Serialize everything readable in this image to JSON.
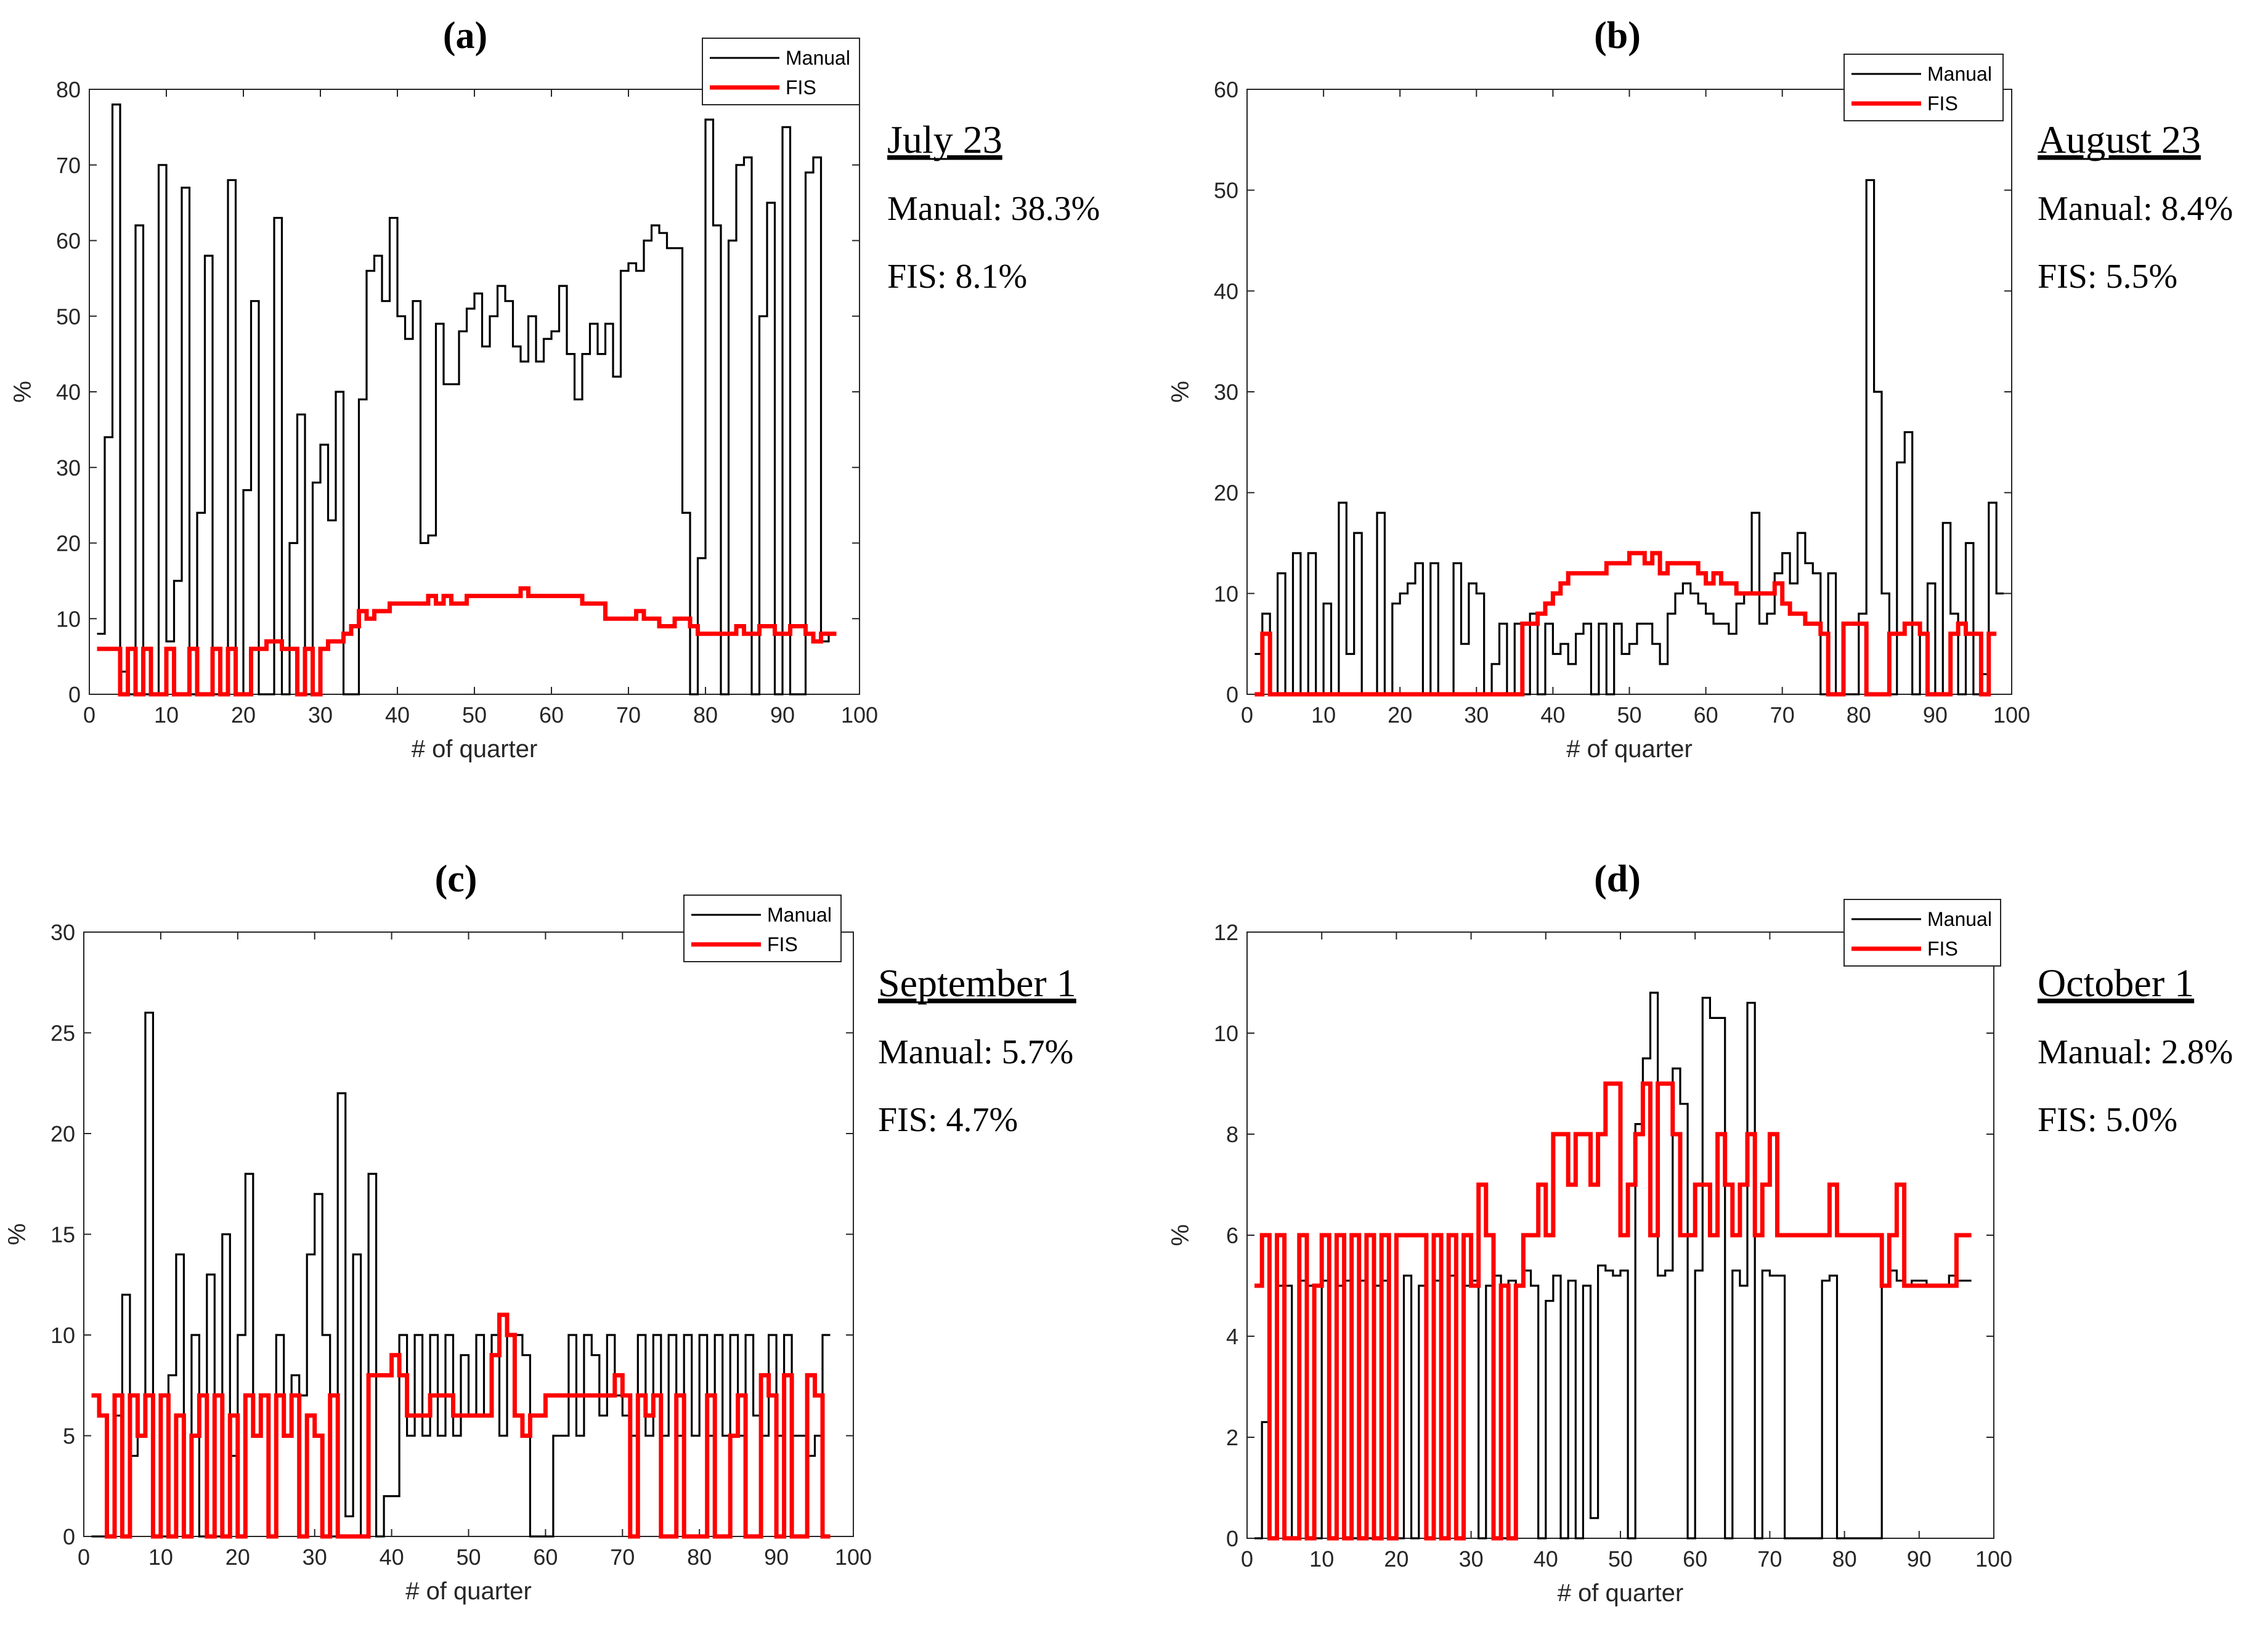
{
  "chart_data": [
    {
      "type": "line",
      "panel": "(a)",
      "xlabel": "# of quarter",
      "ylabel": "%",
      "xlim": [
        0,
        100
      ],
      "ylim": [
        0,
        80
      ],
      "xticks": [
        0,
        10,
        20,
        30,
        40,
        50,
        60,
        70,
        80,
        90,
        100
      ],
      "yticks": [
        0,
        10,
        20,
        30,
        40,
        50,
        60,
        70,
        80
      ],
      "legend": [
        "Manual",
        "FIS"
      ],
      "legend_position": "top-right",
      "annotation": {
        "date": "July 23",
        "manual": "Manual: 38.3%",
        "fis": "FIS: 8.1%"
      },
      "series": [
        {
          "name": "Manual",
          "color": "#000000",
          "step": "post",
          "x_start": 1,
          "values": [
            8,
            34,
            78,
            3,
            0,
            62,
            0,
            0,
            70,
            7,
            15,
            67,
            0,
            24,
            58,
            0,
            0,
            68,
            0,
            27,
            52,
            0,
            0,
            63,
            0,
            20,
            37,
            0,
            28,
            33,
            23,
            40,
            0,
            0,
            39,
            56,
            58,
            52,
            63,
            50,
            47,
            52,
            20,
            21,
            49,
            41,
            41,
            48,
            51,
            53,
            46,
            50,
            54,
            52,
            46,
            44,
            50,
            44,
            47,
            48,
            54,
            45,
            39,
            45,
            49,
            45,
            49,
            42,
            56,
            57,
            56,
            60,
            62,
            61,
            59,
            59,
            24,
            0,
            18,
            76,
            62,
            0,
            60,
            70,
            71,
            0,
            50,
            65,
            0,
            75,
            0,
            0,
            69,
            71,
            7,
            8
          ]
        },
        {
          "name": "FIS",
          "color": "#ff0000",
          "step": "post",
          "x_start": 1,
          "values": [
            6,
            6,
            6,
            0,
            6,
            0,
            6,
            0,
            0,
            6,
            0,
            0,
            6,
            0,
            0,
            6,
            0,
            6,
            0,
            0,
            6,
            6,
            7,
            7,
            6,
            6,
            0,
            6,
            0,
            6,
            7,
            7,
            8,
            9,
            11,
            10,
            11,
            11,
            12,
            12,
            12,
            12,
            12,
            13,
            12,
            13,
            12,
            12,
            13,
            13,
            13,
            13,
            13,
            13,
            13,
            14,
            13,
            13,
            13,
            13,
            13,
            13,
            13,
            12,
            12,
            12,
            10,
            10,
            10,
            10,
            11,
            10,
            10,
            9,
            9,
            10,
            10,
            9,
            8,
            8,
            8,
            8,
            8,
            9,
            8,
            8,
            9,
            9,
            8,
            8,
            9,
            9,
            8,
            7,
            8,
            8
          ]
        }
      ]
    },
    {
      "type": "line",
      "panel": "(b)",
      "xlabel": "# of quarter",
      "ylabel": "%",
      "xlim": [
        0,
        100
      ],
      "ylim": [
        0,
        60
      ],
      "xticks": [
        0,
        10,
        20,
        30,
        40,
        50,
        60,
        70,
        80,
        90,
        100
      ],
      "yticks": [
        0,
        10,
        20,
        30,
        40,
        50,
        60
      ],
      "legend": [
        "Manual",
        "FIS"
      ],
      "legend_position": "top-right",
      "annotation": {
        "date": "August 23",
        "manual": "Manual: 8.4%",
        "fis": "FIS: 5.5%"
      },
      "series": [
        {
          "name": "Manual",
          "color": "#000000",
          "step": "post",
          "x_start": 1,
          "values": [
            4,
            8,
            0,
            12,
            0,
            14,
            0,
            14,
            0,
            9,
            0,
            19,
            4,
            16,
            0,
            0,
            18,
            0,
            9,
            10,
            11,
            13,
            0,
            13,
            0,
            0,
            13,
            5,
            11,
            10,
            0,
            3,
            7,
            0,
            7,
            0,
            8,
            0,
            7,
            4,
            5,
            3,
            6,
            7,
            0,
            7,
            0,
            7,
            4,
            5,
            7,
            7,
            5,
            3,
            8,
            10,
            11,
            10,
            9,
            8,
            7,
            7,
            6,
            9,
            10,
            18,
            7,
            8,
            12,
            14,
            11,
            16,
            13,
            12,
            0,
            12,
            0,
            0,
            0,
            8,
            51,
            30,
            10,
            0,
            23,
            26,
            0,
            6,
            11,
            0,
            17,
            8,
            0,
            15,
            0,
            2,
            19,
            10
          ]
        },
        {
          "name": "FIS",
          "color": "#ff0000",
          "step": "post",
          "x_start": 1,
          "values": [
            0,
            6,
            0,
            0,
            0,
            0,
            0,
            0,
            0,
            0,
            0,
            0,
            0,
            0,
            0,
            0,
            0,
            0,
            0,
            0,
            0,
            0,
            0,
            0,
            0,
            0,
            0,
            0,
            0,
            0,
            0,
            0,
            0,
            0,
            0,
            7,
            7,
            8,
            9,
            10,
            11,
            12,
            12,
            12,
            12,
            12,
            13,
            13,
            13,
            14,
            14,
            13,
            14,
            12,
            13,
            13,
            13,
            13,
            12,
            11,
            12,
            11,
            11,
            10,
            10,
            10,
            10,
            10,
            11,
            9,
            8,
            8,
            7,
            7,
            6,
            0,
            0,
            7,
            7,
            7,
            0,
            0,
            0,
            6,
            6,
            7,
            7,
            6,
            0,
            0,
            0,
            6,
            7,
            6,
            6,
            0,
            6
          ]
        }
      ]
    },
    {
      "type": "line",
      "panel": "(c)",
      "xlabel": "# of quarter",
      "ylabel": "%",
      "xlim": [
        0,
        100
      ],
      "ylim": [
        0,
        30
      ],
      "xticks": [
        0,
        10,
        20,
        30,
        40,
        50,
        60,
        70,
        80,
        90,
        100
      ],
      "yticks": [
        0,
        5,
        10,
        15,
        20,
        25,
        30
      ],
      "legend": [
        "Manual",
        "FIS"
      ],
      "legend_position": "top-right",
      "annotation": {
        "date": "September 1",
        "manual": "Manual: 5.7%",
        "fis": "FIS: 4.7%"
      },
      "series": [
        {
          "name": "Manual",
          "color": "#000000",
          "step": "post",
          "x_start": 1,
          "values": [
            0,
            0,
            0,
            6,
            12,
            4,
            5,
            26,
            0,
            0,
            8,
            14,
            0,
            10,
            0,
            13,
            0,
            15,
            4,
            10,
            18,
            5,
            7,
            0,
            10,
            5,
            8,
            7,
            14,
            17,
            10,
            0,
            22,
            1,
            14,
            0,
            18,
            0,
            2,
            2,
            10,
            5,
            10,
            5,
            10,
            5,
            10,
            5,
            9,
            6,
            10,
            6,
            10,
            5,
            10,
            10,
            9,
            0,
            0,
            0,
            5,
            5,
            10,
            5,
            10,
            9,
            6,
            10,
            7,
            6,
            5,
            10,
            5,
            10,
            5,
            10,
            5,
            10,
            5,
            10,
            5,
            10,
            5,
            10,
            5,
            10,
            6,
            5,
            10,
            5,
            10,
            5,
            5,
            4,
            5,
            10
          ]
        },
        {
          "name": "FIS",
          "color": "#ff0000",
          "step": "post",
          "x_start": 1,
          "values": [
            7,
            6,
            0,
            7,
            0,
            7,
            5,
            7,
            0,
            7,
            0,
            6,
            0,
            5,
            7,
            0,
            7,
            0,
            6,
            0,
            7,
            5,
            7,
            0,
            7,
            5,
            7,
            0,
            6,
            5,
            0,
            7,
            0,
            0,
            0,
            0,
            8,
            8,
            8,
            9,
            8,
            6,
            6,
            6,
            7,
            7,
            7,
            6,
            6,
            6,
            6,
            6,
            9,
            11,
            10,
            6,
            5,
            6,
            6,
            7,
            7,
            7,
            7,
            7,
            7,
            7,
            7,
            7,
            8,
            7,
            0,
            7,
            6,
            7,
            0,
            0,
            7,
            0,
            0,
            0,
            7,
            0,
            0,
            5,
            7,
            0,
            0,
            8,
            7,
            0,
            8,
            0,
            0,
            8,
            7,
            0
          ]
        }
      ]
    },
    {
      "type": "line",
      "panel": "(d)",
      "xlabel": "# of quarter",
      "ylabel": "%",
      "xlim": [
        0,
        100
      ],
      "ylim": [
        0,
        12
      ],
      "xticks": [
        0,
        10,
        20,
        30,
        40,
        50,
        60,
        70,
        80,
        90,
        100
      ],
      "yticks": [
        0,
        2,
        4,
        6,
        8,
        10,
        12
      ],
      "legend": [
        "Manual",
        "FIS"
      ],
      "legend_position": "top-right",
      "annotation": {
        "date": "October 1",
        "manual": "Manual: 2.8%",
        "fis": "FIS: 5.0%"
      },
      "series": [
        {
          "name": "Manual",
          "color": "#000000",
          "step": "post",
          "x_start": 1,
          "values": [
            0,
            2.3,
            0,
            5,
            5,
            0,
            5.1,
            5,
            0,
            5.1,
            0,
            5,
            5.1,
            0,
            5.1,
            0,
            5,
            5.1,
            0,
            0,
            5.2,
            0,
            5,
            0,
            5.1,
            0,
            5.2,
            0,
            5,
            5.1,
            0,
            5,
            5.2,
            0,
            5.1,
            5,
            5.3,
            5,
            0,
            4.7,
            5.2,
            0,
            5.1,
            0,
            5,
            0.4,
            5.4,
            5.3,
            5.2,
            5.3,
            0,
            8.2,
            9.5,
            10.8,
            5.2,
            5.3,
            9.3,
            8.6,
            0,
            5.3,
            10.7,
            10.3,
            10.3,
            0,
            5.3,
            5,
            10.6,
            0,
            5.3,
            5.2,
            5.2,
            0,
            0,
            0,
            0,
            0,
            5.1,
            5.2,
            0,
            0,
            0,
            0,
            0,
            0,
            5,
            5.3,
            5.1,
            5,
            5.1,
            5.1,
            5,
            5,
            5,
            5.2,
            5.1,
            5.1
          ]
        },
        {
          "name": "FIS",
          "color": "#ff0000",
          "step": "post",
          "x_start": 1,
          "values": [
            5,
            6,
            0,
            6,
            0,
            0,
            6,
            0,
            5,
            6,
            0,
            6,
            0,
            6,
            0,
            6,
            0,
            6,
            0,
            6,
            6,
            6,
            6,
            0,
            6,
            0,
            6,
            0,
            6,
            5,
            7,
            6,
            0,
            5,
            0,
            5,
            6,
            6,
            7,
            6,
            8,
            8,
            7,
            8,
            8,
            7,
            8,
            9,
            9,
            6,
            7,
            8,
            9,
            6,
            9,
            9,
            8,
            6,
            6,
            7,
            7,
            6,
            8,
            7,
            6,
            7,
            8,
            6,
            7,
            8,
            6,
            6,
            6,
            6,
            6,
            6,
            6,
            7,
            6,
            6,
            6,
            6,
            6,
            6,
            5,
            6,
            7,
            5,
            5,
            5,
            5,
            5,
            5,
            5,
            6,
            6
          ]
        }
      ]
    }
  ]
}
